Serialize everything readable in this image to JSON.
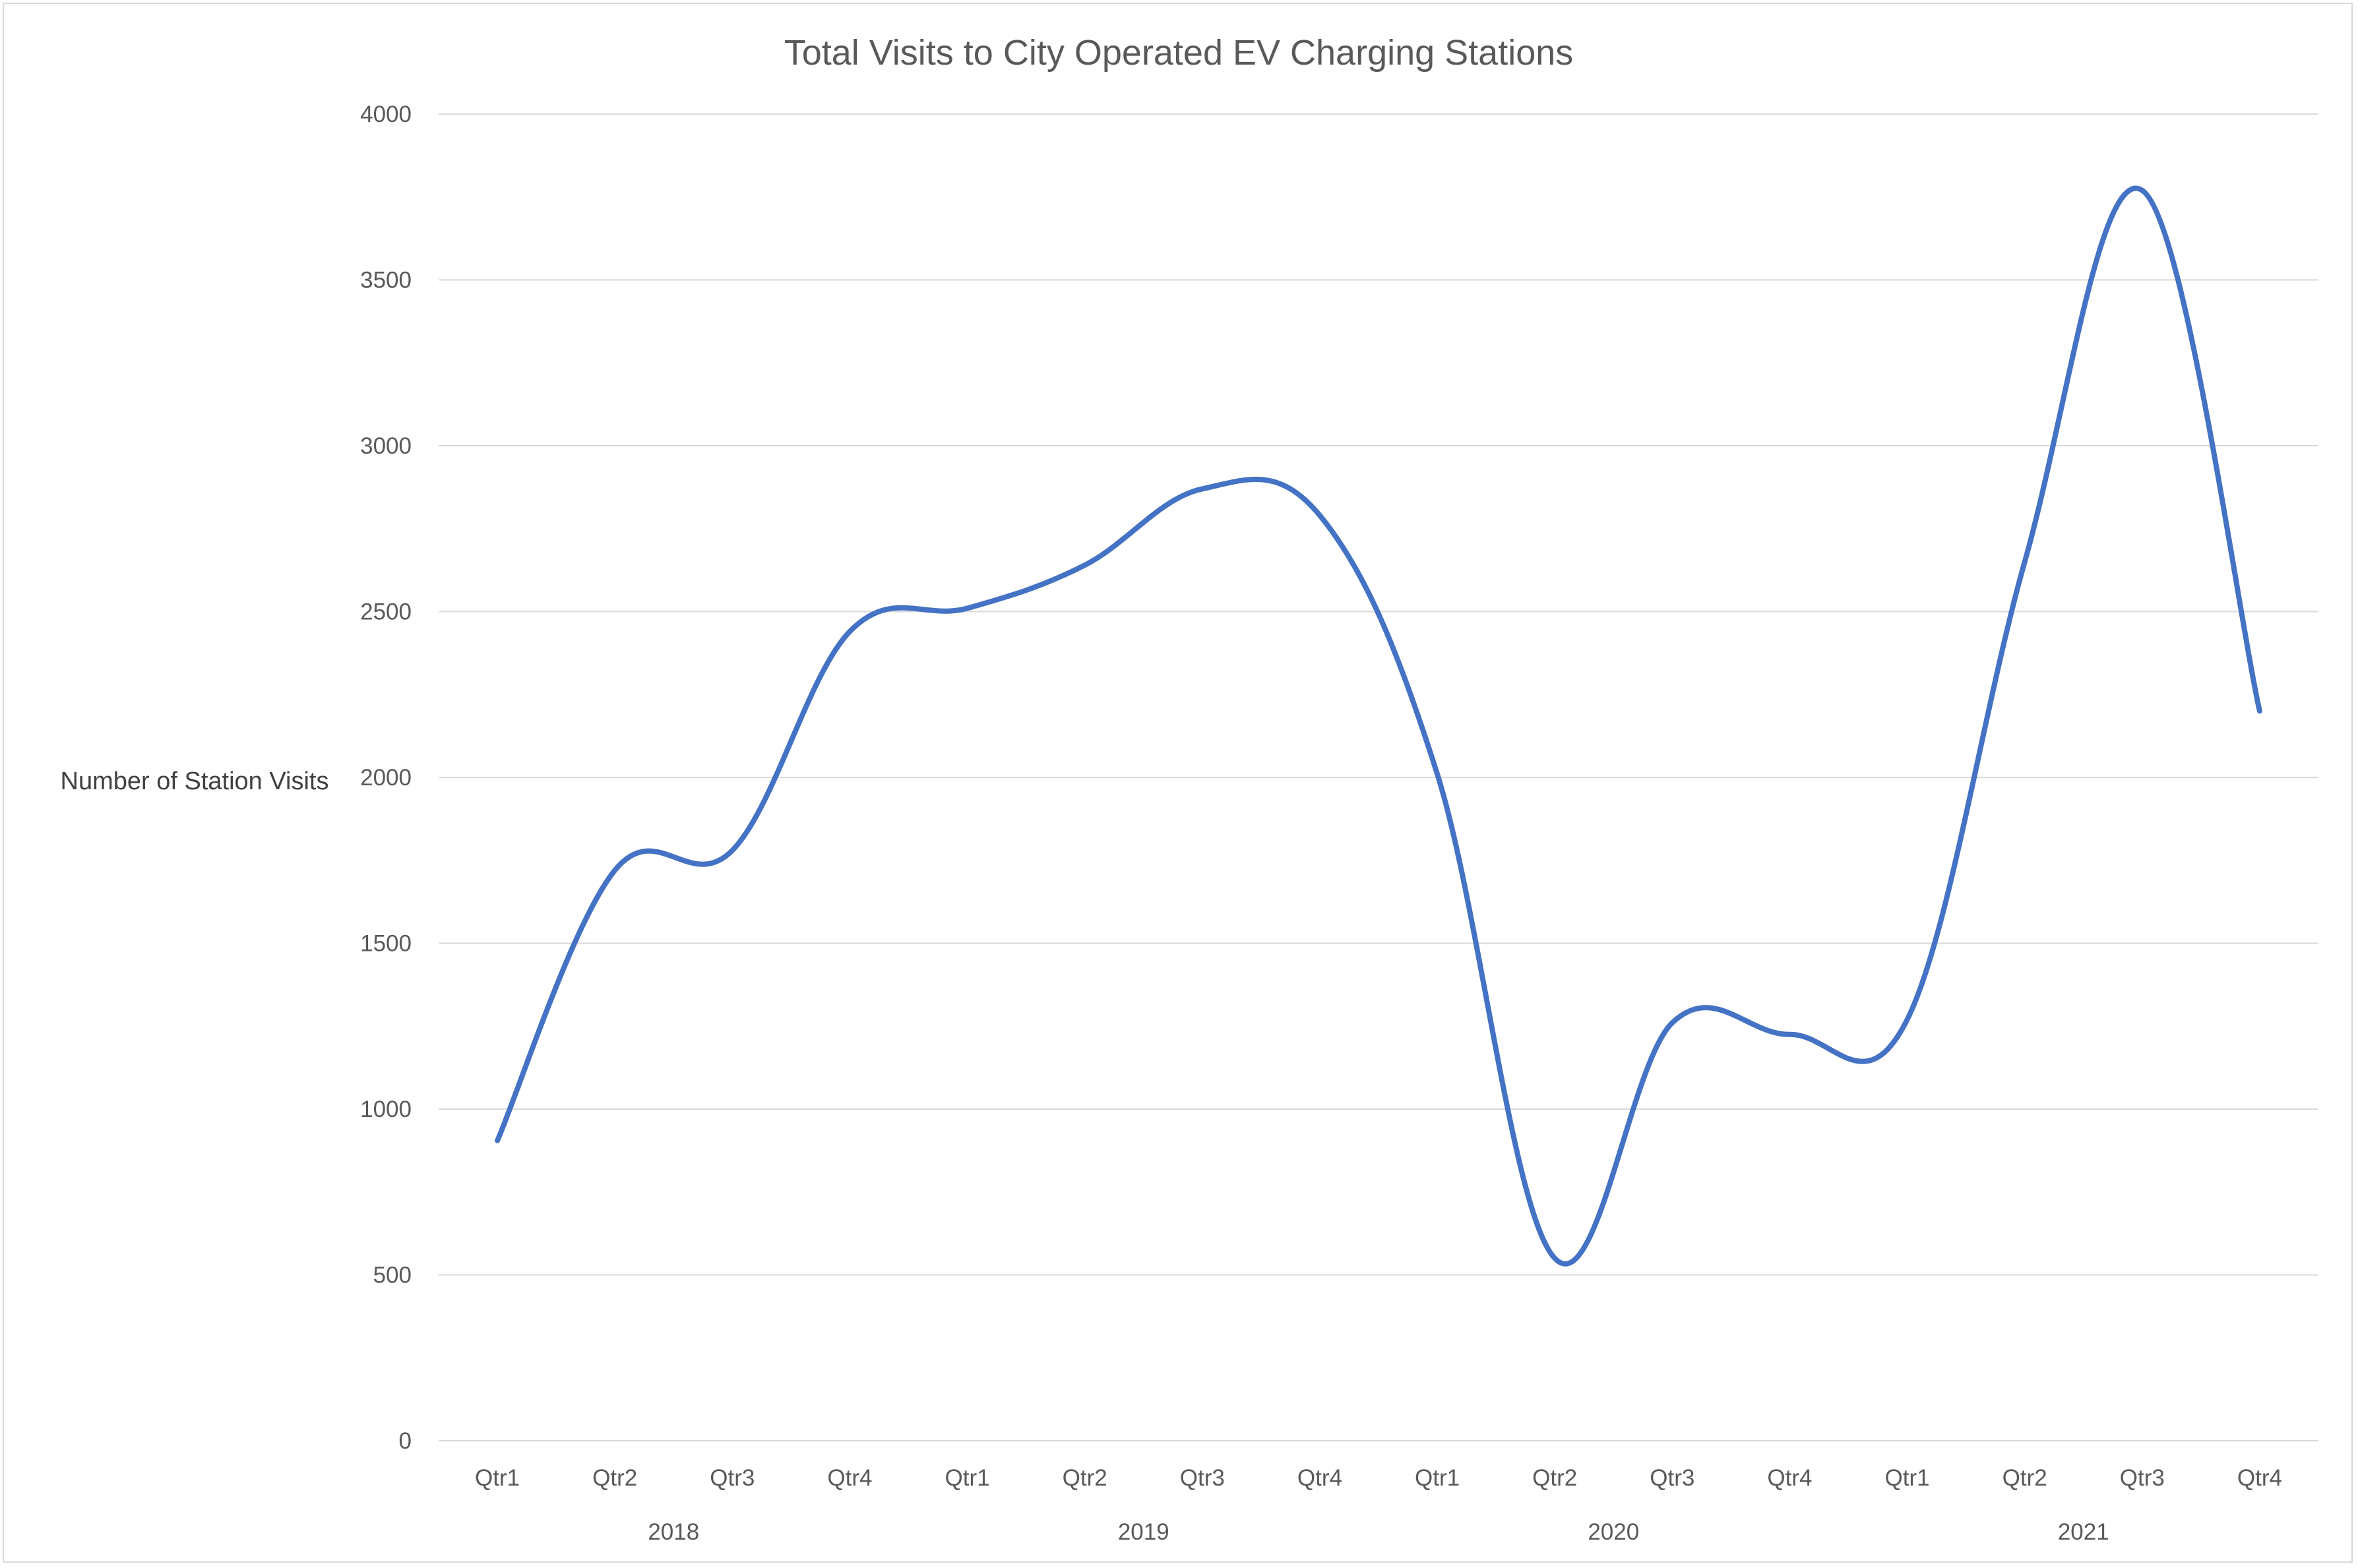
{
  "chart_data": {
    "type": "line",
    "smooth": true,
    "title": "Total Visits to City Operated EV Charging Stations",
    "ylabel": "Number of Station Visits",
    "xlabel": "",
    "ylim": [
      0,
      4000
    ],
    "y_ticks": [
      0,
      500,
      1000,
      1500,
      2000,
      2500,
      3000,
      3500,
      4000
    ],
    "grid": true,
    "legend": "none",
    "categories": [
      "Qtr1",
      "Qtr2",
      "Qtr3",
      "Qtr4",
      "Qtr1",
      "Qtr2",
      "Qtr3",
      "Qtr4",
      "Qtr1",
      "Qtr2",
      "Qtr3",
      "Qtr4",
      "Qtr1",
      "Qtr2",
      "Qtr3",
      "Qtr4"
    ],
    "groups": [
      {
        "label": "2018",
        "span": 4
      },
      {
        "label": "2019",
        "span": 4
      },
      {
        "label": "2020",
        "span": 4
      },
      {
        "label": "2021",
        "span": 4
      }
    ],
    "series": [
      {
        "color": "#4472c4",
        "values": [
          905,
          1720,
          1780,
          2440,
          2510,
          2640,
          2870,
          2790,
          2010,
          550,
          1260,
          1225,
          1270,
          2650,
          3770,
          2200
        ]
      }
    ],
    "colors": {
      "line": "#4472c4",
      "grid": "#d9d9d9",
      "text": "#595959",
      "frame": "#d9d9d9"
    }
  }
}
